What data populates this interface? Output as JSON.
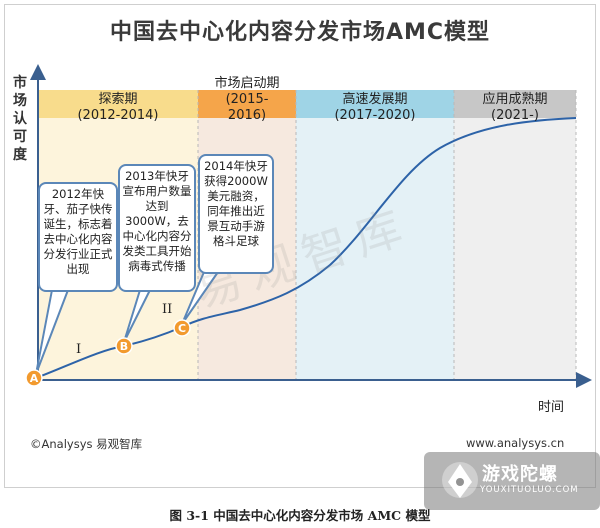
{
  "title": "中国去中心化内容分发市场AMC模型",
  "y_axis_label": [
    "市",
    "场",
    "认",
    "可",
    "度"
  ],
  "x_axis_label": "时间",
  "phases": [
    {
      "name": "探索期",
      "period": "(2012-2014)",
      "color": "#f8dc8c",
      "shade": "#fdf4dc"
    },
    {
      "name": "市场启动期",
      "period": "(2015-2016)",
      "color": "#f5a54a",
      "shade": "#f6e9df"
    },
    {
      "name": "高速发展期",
      "period": "(2017-2020)",
      "color": "#9fd4e6",
      "shade": "#e4f1f6"
    },
    {
      "name": "应用成熟期",
      "period": "(2021-)",
      "color": "#c7c7c7",
      "shade": "#efefef"
    }
  ],
  "markers": [
    "A",
    "B",
    "C"
  ],
  "marker_color": "#f29a2e",
  "curve_color": "#2d63a8",
  "stages": [
    "I",
    "II"
  ],
  "callouts": [
    "2012年快牙、茄子快传诞生，标志着去中心化内容分发行业正式出现",
    "2013年快牙宣布用户数量达到3000W，去中心化内容分发类工具开始病毒式传播",
    "2014年快牙获得2000W美元融资，同年推出近景互动手游格斗足球"
  ],
  "watermark": "易观智库",
  "footer_left": "©Analysys 易观智库",
  "footer_right": "www.analysys.cn",
  "caption": "图 3-1  中国去中心化内容分发市场 AMC 模型",
  "logo": {
    "name": "游戏陀螺",
    "url": "YOUXITUOLUO.COM"
  }
}
